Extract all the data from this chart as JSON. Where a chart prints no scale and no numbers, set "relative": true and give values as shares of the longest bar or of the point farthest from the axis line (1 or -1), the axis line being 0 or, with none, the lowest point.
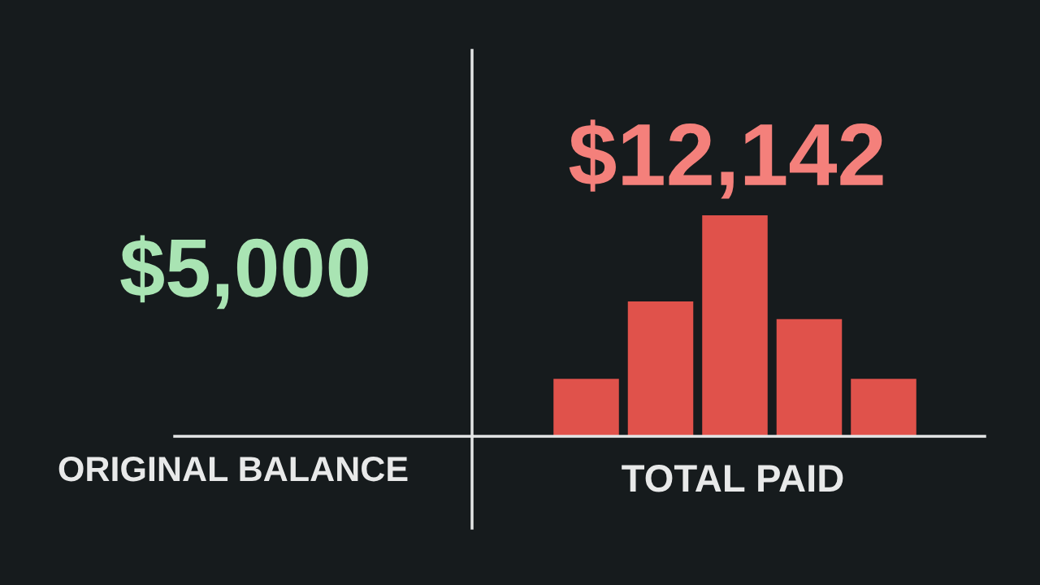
{
  "chart_data": [
    {
      "type": "other",
      "title": "$5,000",
      "xlabel": "ORIGINAL BALANCE"
    },
    {
      "type": "bar",
      "title": "$12,142",
      "xlabel": "TOTAL PAID",
      "categories": [
        null,
        null,
        null,
        null,
        null
      ],
      "values": [
        0.26,
        0.61,
        1,
        0.53,
        0.26
      ],
      "color": "#e0524b",
      "relative": true
    }
  ]
}
